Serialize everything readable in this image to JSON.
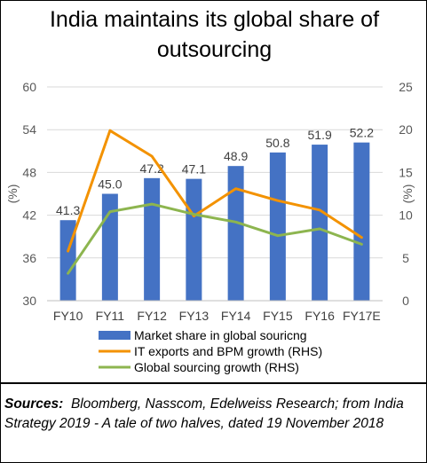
{
  "title": "India maintains its global share of outsourcing",
  "source": {
    "label": "Sources:",
    "text": "Bloomberg, Nasscom, Edelweiss Research; from India Strategy 2019 - A tale of two halves, dated 19 November 2018"
  },
  "chart_data": {
    "type": "bar",
    "categories": [
      "FY10",
      "FY11",
      "FY12",
      "FY13",
      "FY14",
      "FY15",
      "FY16",
      "FY17E"
    ],
    "ylabel_left": "(%)",
    "ylabel_right": "(%)",
    "ylim_left": [
      30,
      60
    ],
    "ylim_right": [
      0,
      25
    ],
    "yticks_left": [
      "60",
      "54",
      "48",
      "42",
      "36",
      "30"
    ],
    "yticks_right": [
      "25",
      "20",
      "15",
      "10",
      "5",
      "0"
    ],
    "legend_position": "bottom",
    "series": [
      {
        "name": "Market share in global souricng",
        "type": "bar",
        "axis": "left",
        "color": "#4472C4",
        "values": [
          41.3,
          45.0,
          47.2,
          47.1,
          48.9,
          50.8,
          51.9,
          52.2
        ],
        "labels": [
          "41.3",
          "45.0",
          "47.2",
          "47.1",
          "48.9",
          "50.8",
          "51.9",
          "52.2"
        ]
      },
      {
        "name": "IT exports and BPM growth (RHS)",
        "type": "line",
        "axis": "right",
        "color": "#F39200",
        "values": [
          5.8,
          19.9,
          16.9,
          9.9,
          13.1,
          11.7,
          10.6,
          7.4
        ]
      },
      {
        "name": "Global sourcing growth (RHS)",
        "type": "line",
        "axis": "right",
        "color": "#8DB54F",
        "values": [
          3.2,
          10.4,
          11.3,
          10.1,
          9.2,
          7.6,
          8.4,
          6.6
        ]
      }
    ]
  }
}
